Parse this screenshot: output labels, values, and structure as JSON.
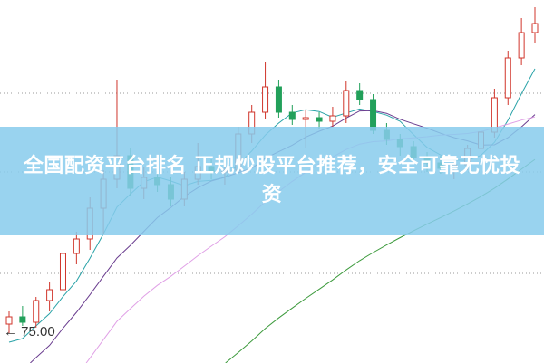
{
  "banner": {
    "title": "全国配资平台排名 正规炒股平台推荐，安全可靠无忧投资"
  },
  "chart_data": {
    "type": "candlestick",
    "title": "",
    "price_marker": "75.00",
    "ylim": [
      73.35,
      93.4
    ],
    "grid": "horizontal dotted",
    "colors": {
      "up": "#d0352b",
      "down": "#22a05a",
      "ma": [
        "#2aa3a8",
        "#6a3d8f",
        "#e0a0e6",
        "#3c9a3c"
      ]
    },
    "ma_periods": [
      5,
      10,
      20,
      40
    ],
    "candles": [
      [
        75.5,
        76.2,
        75.0,
        75.9
      ],
      [
        75.9,
        76.5,
        75.4,
        75.6
      ],
      [
        75.6,
        77.0,
        75.3,
        76.8
      ],
      [
        76.8,
        77.8,
        76.2,
        77.4
      ],
      [
        77.4,
        79.8,
        77.0,
        79.4
      ],
      [
        79.4,
        80.6,
        78.8,
        80.2
      ],
      [
        80.2,
        82.5,
        79.6,
        81.9
      ],
      [
        81.9,
        84.0,
        80.5,
        83.5
      ],
      [
        83.5,
        89.0,
        83.0,
        84.8
      ],
      [
        84.8,
        85.2,
        82.6,
        83.0
      ],
      [
        83.0,
        84.2,
        82.4,
        83.6
      ],
      [
        83.6,
        84.4,
        82.8,
        83.2
      ],
      [
        83.2,
        83.6,
        82.0,
        82.4
      ],
      [
        82.4,
        83.9,
        82.0,
        83.5
      ],
      [
        83.5,
        85.5,
        83.2,
        84.2
      ],
      [
        84.2,
        84.6,
        83.5,
        83.9
      ],
      [
        83.9,
        84.3,
        83.2,
        84.0
      ],
      [
        84.0,
        86.4,
        83.8,
        86.0
      ],
      [
        86.0,
        87.6,
        85.5,
        87.2
      ],
      [
        87.2,
        90.0,
        86.8,
        88.6
      ],
      [
        88.6,
        89.0,
        86.9,
        87.2
      ],
      [
        87.2,
        87.6,
        86.5,
        86.8
      ],
      [
        86.8,
        87.3,
        85.2,
        86.9
      ],
      [
        86.9,
        87.2,
        86.3,
        86.7
      ],
      [
        86.7,
        87.5,
        86.4,
        87.0
      ],
      [
        87.0,
        88.9,
        86.6,
        88.4
      ],
      [
        88.4,
        88.8,
        87.6,
        87.9
      ],
      [
        87.9,
        88.2,
        86.0,
        86.2
      ],
      [
        86.2,
        86.6,
        85.4,
        85.7
      ],
      [
        85.7,
        86.0,
        84.8,
        85.3
      ],
      [
        85.3,
        85.6,
        84.4,
        84.7
      ],
      [
        84.7,
        85.0,
        83.9,
        84.4
      ],
      [
        84.4,
        84.8,
        83.8,
        84.1
      ],
      [
        84.1,
        84.6,
        83.5,
        84.3
      ],
      [
        84.3,
        85.4,
        84.0,
        85.2
      ],
      [
        85.2,
        86.4,
        84.9,
        86.1
      ],
      [
        86.1,
        88.5,
        85.8,
        88.0
      ],
      [
        88.0,
        90.6,
        87.6,
        90.2
      ],
      [
        90.2,
        92.4,
        89.8,
        91.6
      ],
      [
        91.6,
        93.0,
        91.0,
        92.1
      ]
    ]
  }
}
